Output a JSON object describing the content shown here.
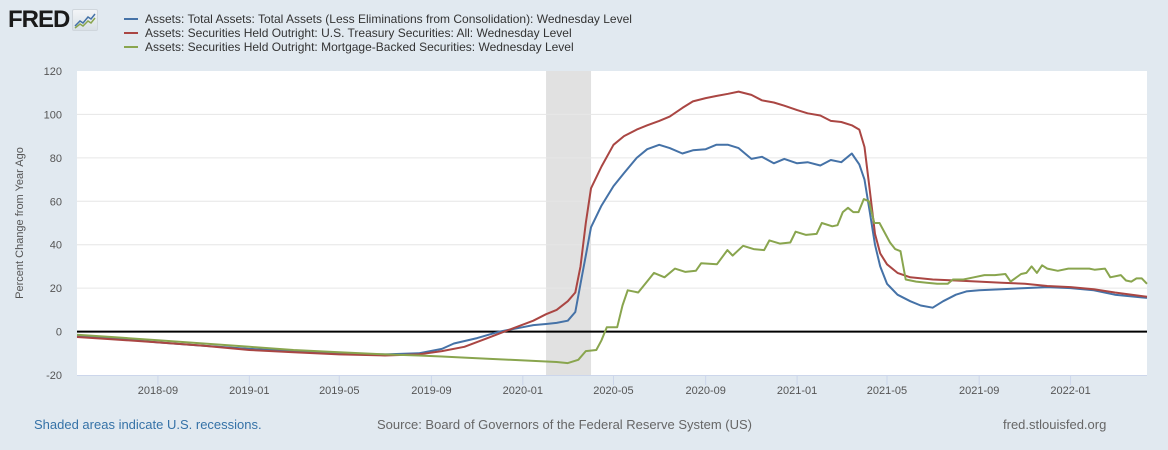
{
  "logo": {
    "text": "FRED",
    "icon": "fred-graph-icon"
  },
  "footer": {
    "recession_note": "Shaded areas indicate U.S. recessions.",
    "source": "Source: Board of Governors of the Federal Reserve System (US)",
    "site": "fred.stlouisfed.org"
  },
  "chart_data": {
    "type": "line",
    "title": "",
    "xlabel": "",
    "ylabel": "Percent Change from Year Ago",
    "ylim": [
      -20,
      120
    ],
    "yticks": [
      -20,
      0,
      20,
      40,
      60,
      80,
      100,
      120
    ],
    "xlim": [
      "2018-05-16",
      "2022-04-13"
    ],
    "xticks": [
      "2018-09",
      "2019-01",
      "2019-05",
      "2019-09",
      "2020-01",
      "2020-05",
      "2020-09",
      "2021-01",
      "2021-05",
      "2021-09",
      "2022-01"
    ],
    "grid": true,
    "legend_position": "top-left",
    "zero_line": true,
    "recessions": [
      [
        "2020-02-01",
        "2020-04-01"
      ]
    ],
    "series": [
      {
        "name": "Assets: Total Assets: Total Assets (Less Eliminations from Consolidation): Wednesday Level",
        "color": "#4572a7",
        "points": [
          [
            "2018-05-16",
            -2
          ],
          [
            "2018-07-01",
            -3
          ],
          [
            "2018-09-01",
            -5
          ],
          [
            "2018-11-01",
            -6.5
          ],
          [
            "2019-01-01",
            -8
          ],
          [
            "2019-03-01",
            -9
          ],
          [
            "2019-05-01",
            -10
          ],
          [
            "2019-07-01",
            -10.5
          ],
          [
            "2019-08-15",
            -10
          ],
          [
            "2019-09-15",
            -8
          ],
          [
            "2019-10-01",
            -5.5
          ],
          [
            "2019-11-01",
            -3
          ],
          [
            "2019-12-01",
            0
          ],
          [
            "2020-01-01",
            2
          ],
          [
            "2020-01-15",
            3
          ],
          [
            "2020-02-01",
            3.5
          ],
          [
            "2020-02-15",
            4
          ],
          [
            "2020-03-01",
            5
          ],
          [
            "2020-03-11",
            9
          ],
          [
            "2020-03-18",
            22
          ],
          [
            "2020-03-25",
            35
          ],
          [
            "2020-04-01",
            48
          ],
          [
            "2020-04-15",
            58
          ],
          [
            "2020-05-01",
            67
          ],
          [
            "2020-05-15",
            73
          ],
          [
            "2020-06-01",
            80
          ],
          [
            "2020-06-15",
            84
          ],
          [
            "2020-07-01",
            86
          ],
          [
            "2020-07-15",
            84.5
          ],
          [
            "2020-08-01",
            82
          ],
          [
            "2020-08-15",
            83.5
          ],
          [
            "2020-09-01",
            84
          ],
          [
            "2020-09-15",
            86
          ],
          [
            "2020-10-01",
            86
          ],
          [
            "2020-10-15",
            84.5
          ],
          [
            "2020-11-01",
            79.5
          ],
          [
            "2020-11-15",
            80.5
          ],
          [
            "2020-12-01",
            77.5
          ],
          [
            "2020-12-15",
            79.5
          ],
          [
            "2021-01-01",
            77.5
          ],
          [
            "2021-01-15",
            78
          ],
          [
            "2021-02-01",
            76.5
          ],
          [
            "2021-02-15",
            79
          ],
          [
            "2021-03-01",
            78
          ],
          [
            "2021-03-15",
            82
          ],
          [
            "2021-03-25",
            77
          ],
          [
            "2021-04-01",
            70
          ],
          [
            "2021-04-08",
            55
          ],
          [
            "2021-04-15",
            40
          ],
          [
            "2021-04-22",
            30
          ],
          [
            "2021-05-01",
            22
          ],
          [
            "2021-05-15",
            17
          ],
          [
            "2021-06-01",
            14
          ],
          [
            "2021-06-15",
            12
          ],
          [
            "2021-07-01",
            11
          ],
          [
            "2021-07-15",
            14
          ],
          [
            "2021-08-01",
            17
          ],
          [
            "2021-08-15",
            18.5
          ],
          [
            "2021-09-01",
            19
          ],
          [
            "2021-10-01",
            19.5
          ],
          [
            "2021-11-01",
            20
          ],
          [
            "2021-12-01",
            20.5
          ],
          [
            "2022-01-01",
            20
          ],
          [
            "2022-02-01",
            19
          ],
          [
            "2022-03-01",
            17
          ],
          [
            "2022-04-13",
            15.5
          ]
        ]
      },
      {
        "name": "Assets: Securities Held Outright: U.S. Treasury Securities: All: Wednesday Level",
        "color": "#aa4643",
        "points": [
          [
            "2018-05-16",
            -2.5
          ],
          [
            "2018-07-01",
            -3.5
          ],
          [
            "2018-09-01",
            -5
          ],
          [
            "2018-11-01",
            -6.5
          ],
          [
            "2019-01-01",
            -8.5
          ],
          [
            "2019-03-01",
            -9.5
          ],
          [
            "2019-05-01",
            -10.5
          ],
          [
            "2019-07-01",
            -11
          ],
          [
            "2019-08-15",
            -10.5
          ],
          [
            "2019-09-15",
            -9
          ],
          [
            "2019-10-15",
            -7
          ],
          [
            "2019-11-15",
            -3
          ],
          [
            "2019-12-15",
            1
          ],
          [
            "2020-01-15",
            5
          ],
          [
            "2020-02-01",
            8
          ],
          [
            "2020-02-15",
            10
          ],
          [
            "2020-03-01",
            14
          ],
          [
            "2020-03-11",
            18
          ],
          [
            "2020-03-18",
            30
          ],
          [
            "2020-03-25",
            50
          ],
          [
            "2020-04-01",
            66
          ],
          [
            "2020-04-15",
            76
          ],
          [
            "2020-05-01",
            86
          ],
          [
            "2020-05-15",
            90
          ],
          [
            "2020-06-01",
            93
          ],
          [
            "2020-06-15",
            95
          ],
          [
            "2020-07-01",
            97
          ],
          [
            "2020-07-15",
            99
          ],
          [
            "2020-08-01",
            103
          ],
          [
            "2020-08-15",
            106
          ],
          [
            "2020-09-01",
            107.5
          ],
          [
            "2020-09-15",
            108.5
          ],
          [
            "2020-10-01",
            109.5
          ],
          [
            "2020-10-15",
            110.5
          ],
          [
            "2020-11-01",
            109
          ],
          [
            "2020-11-15",
            106.5
          ],
          [
            "2020-12-01",
            105.5
          ],
          [
            "2020-12-15",
            104
          ],
          [
            "2021-01-01",
            102
          ],
          [
            "2021-01-15",
            100.5
          ],
          [
            "2021-02-01",
            99.5
          ],
          [
            "2021-02-15",
            97
          ],
          [
            "2021-03-01",
            96.5
          ],
          [
            "2021-03-15",
            95
          ],
          [
            "2021-03-25",
            93
          ],
          [
            "2021-04-01",
            85
          ],
          [
            "2021-04-08",
            65
          ],
          [
            "2021-04-15",
            45
          ],
          [
            "2021-04-22",
            36
          ],
          [
            "2021-05-01",
            31
          ],
          [
            "2021-05-15",
            27
          ],
          [
            "2021-06-01",
            25
          ],
          [
            "2021-07-01",
            24
          ],
          [
            "2021-08-01",
            23.5
          ],
          [
            "2021-09-01",
            23
          ],
          [
            "2021-10-01",
            22.5
          ],
          [
            "2021-11-01",
            22
          ],
          [
            "2021-12-01",
            21
          ],
          [
            "2022-01-01",
            20.5
          ],
          [
            "2022-02-01",
            19.5
          ],
          [
            "2022-03-01",
            18
          ],
          [
            "2022-04-13",
            16
          ]
        ]
      },
      {
        "name": "Assets: Securities Held Outright: Mortgage-Backed Securities: Wednesday Level",
        "color": "#89a54e",
        "points": [
          [
            "2018-05-16",
            -1.5
          ],
          [
            "2018-07-01",
            -2.5
          ],
          [
            "2018-09-01",
            -4
          ],
          [
            "2018-11-01",
            -5.5
          ],
          [
            "2019-01-01",
            -7
          ],
          [
            "2019-03-01",
            -8.5
          ],
          [
            "2019-05-01",
            -9.5
          ],
          [
            "2019-07-01",
            -10.5
          ],
          [
            "2019-08-15",
            -11
          ],
          [
            "2019-09-15",
            -11.5
          ],
          [
            "2019-10-15",
            -12
          ],
          [
            "2019-11-15",
            -12.5
          ],
          [
            "2019-12-15",
            -13
          ],
          [
            "2020-01-15",
            -13.5
          ],
          [
            "2020-02-15",
            -14
          ],
          [
            "2020-03-01",
            -14.5
          ],
          [
            "2020-03-15",
            -13
          ],
          [
            "2020-03-25",
            -9
          ],
          [
            "2020-04-08",
            -8.5
          ],
          [
            "2020-04-15",
            -4
          ],
          [
            "2020-04-22",
            2
          ],
          [
            "2020-05-06",
            2
          ],
          [
            "2020-05-13",
            12
          ],
          [
            "2020-05-20",
            19
          ],
          [
            "2020-06-03",
            18
          ],
          [
            "2020-06-17",
            24
          ],
          [
            "2020-06-24",
            27
          ],
          [
            "2020-07-08",
            25
          ],
          [
            "2020-07-22",
            29
          ],
          [
            "2020-08-05",
            27.5
          ],
          [
            "2020-08-19",
            28
          ],
          [
            "2020-08-26",
            31.5
          ],
          [
            "2020-09-16",
            31
          ],
          [
            "2020-09-30",
            37.5
          ],
          [
            "2020-10-07",
            35
          ],
          [
            "2020-10-21",
            39.5
          ],
          [
            "2020-11-04",
            38
          ],
          [
            "2020-11-18",
            37.5
          ],
          [
            "2020-11-25",
            42
          ],
          [
            "2020-12-09",
            40.5
          ],
          [
            "2020-12-23",
            41
          ],
          [
            "2020-12-30",
            46
          ],
          [
            "2021-01-13",
            44.5
          ],
          [
            "2021-01-27",
            45
          ],
          [
            "2021-02-03",
            50
          ],
          [
            "2021-02-17",
            48.5
          ],
          [
            "2021-02-24",
            49
          ],
          [
            "2021-03-03",
            55
          ],
          [
            "2021-03-10",
            57
          ],
          [
            "2021-03-17",
            55
          ],
          [
            "2021-03-24",
            55
          ],
          [
            "2021-03-31",
            61
          ],
          [
            "2021-04-07",
            60
          ],
          [
            "2021-04-14",
            50
          ],
          [
            "2021-04-21",
            50
          ],
          [
            "2021-05-05",
            41
          ],
          [
            "2021-05-12",
            38
          ],
          [
            "2021-05-19",
            37
          ],
          [
            "2021-05-26",
            24
          ],
          [
            "2021-06-09",
            23
          ],
          [
            "2021-06-23",
            22.5
          ],
          [
            "2021-07-07",
            22
          ],
          [
            "2021-07-21",
            22
          ],
          [
            "2021-07-28",
            24
          ],
          [
            "2021-08-11",
            24
          ],
          [
            "2021-08-25",
            25
          ],
          [
            "2021-09-08",
            26
          ],
          [
            "2021-09-22",
            26
          ],
          [
            "2021-10-06",
            26.5
          ],
          [
            "2021-10-13",
            23
          ],
          [
            "2021-10-27",
            26.5
          ],
          [
            "2021-11-03",
            27
          ],
          [
            "2021-11-10",
            30
          ],
          [
            "2021-11-17",
            27
          ],
          [
            "2021-11-24",
            30.5
          ],
          [
            "2021-12-01",
            29
          ],
          [
            "2021-12-15",
            28
          ],
          [
            "2021-12-29",
            29
          ],
          [
            "2022-01-12",
            29
          ],
          [
            "2022-01-26",
            29
          ],
          [
            "2022-02-02",
            28.5
          ],
          [
            "2022-02-16",
            29
          ],
          [
            "2022-02-23",
            25
          ],
          [
            "2022-03-09",
            26
          ],
          [
            "2022-03-16",
            23.5
          ],
          [
            "2022-03-23",
            23
          ],
          [
            "2022-03-30",
            24.5
          ],
          [
            "2022-04-06",
            24.5
          ],
          [
            "2022-04-13",
            22
          ]
        ]
      }
    ]
  }
}
